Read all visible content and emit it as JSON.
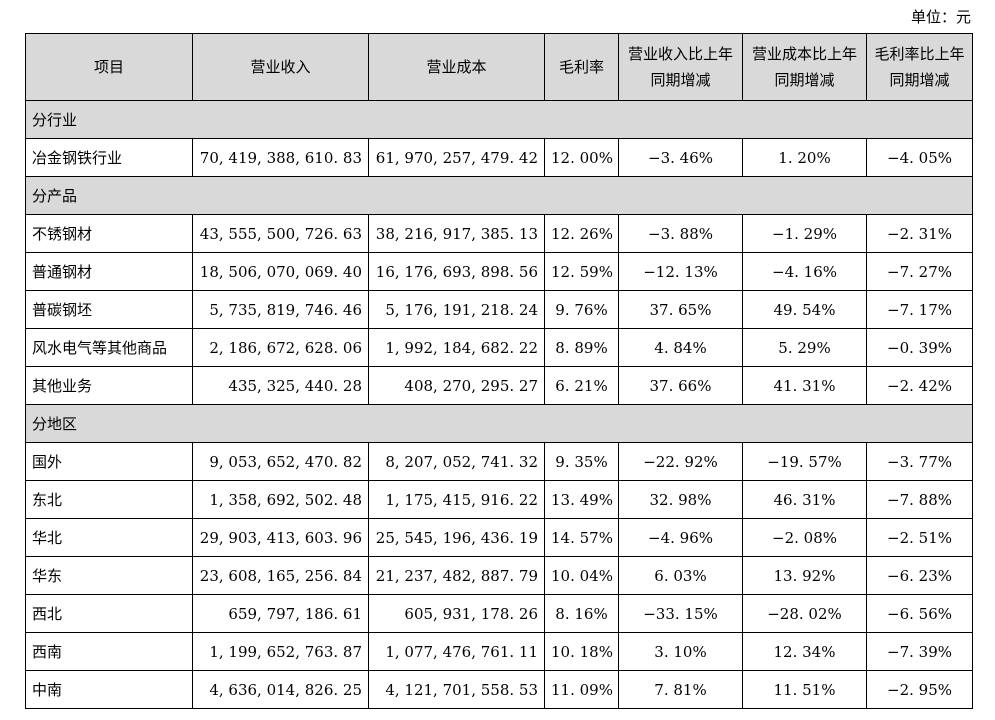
{
  "unit_label": "单位：元",
  "headers": [
    "项目",
    "营业收入",
    "营业成本",
    "毛利率",
    "营业收入比上年同期增减",
    "营业成本比上年同期增减",
    "毛利率比上年同期增减"
  ],
  "sections": [
    {
      "title": "分行业",
      "rows": [
        [
          "冶金钢铁行业",
          "70, 419, 388, 610. 83",
          "61, 970, 257, 479. 42",
          "12. 00%",
          "−3. 46%",
          "1. 20%",
          "−4. 05%"
        ]
      ]
    },
    {
      "title": "分产品",
      "rows": [
        [
          "不锈钢材",
          "43, 555, 500, 726. 63",
          "38, 216, 917, 385. 13",
          "12. 26%",
          "−3. 88%",
          "−1. 29%",
          "−2. 31%"
        ],
        [
          "普通钢材",
          "18, 506, 070, 069. 40",
          "16, 176, 693, 898. 56",
          "12. 59%",
          "−12. 13%",
          "−4. 16%",
          "−7. 27%"
        ],
        [
          "普碳钢坯",
          "5, 735, 819, 746. 46",
          "5, 176, 191, 218. 24",
          "9. 76%",
          "37. 65%",
          "49. 54%",
          "−7. 17%"
        ],
        [
          "风水电气等其他商品",
          "2, 186, 672, 628. 06",
          "1, 992, 184, 682. 22",
          "8. 89%",
          "4. 84%",
          "5. 29%",
          "−0. 39%"
        ],
        [
          "其他业务",
          "435, 325, 440. 28",
          "408, 270, 295. 27",
          "6. 21%",
          "37. 66%",
          "41. 31%",
          "−2. 42%"
        ]
      ]
    },
    {
      "title": "分地区",
      "rows": [
        [
          "国外",
          "9, 053, 652, 470. 82",
          "8, 207, 052, 741. 32",
          "9. 35%",
          "−22. 92%",
          "−19. 57%",
          "−3. 77%"
        ],
        [
          "东北",
          "1, 358, 692, 502. 48",
          "1, 175, 415, 916. 22",
          "13. 49%",
          "32. 98%",
          "46. 31%",
          "−7. 88%"
        ],
        [
          "华北",
          "29, 903, 413, 603. 96",
          "25, 545, 196, 436. 19",
          "14. 57%",
          "−4. 96%",
          "−2. 08%",
          "−2. 51%"
        ],
        [
          "华东",
          "23, 608, 165, 256. 84",
          "21, 237, 482, 887. 79",
          "10. 04%",
          "6. 03%",
          "13. 92%",
          "−6. 23%"
        ],
        [
          "西北",
          "659, 797, 186. 61",
          "605, 931, 178. 26",
          "8. 16%",
          "−33. 15%",
          "−28. 02%",
          "−6. 56%"
        ],
        [
          "西南",
          "1, 199, 652, 763. 87",
          "1, 077, 476, 761. 11",
          "10. 18%",
          "3. 10%",
          "12. 34%",
          "−7. 39%"
        ],
        [
          "中南",
          "4, 636, 014, 826. 25",
          "4, 121, 701, 558. 53",
          "11. 09%",
          "7. 81%",
          "11. 51%",
          "−2. 95%"
        ]
      ]
    }
  ]
}
